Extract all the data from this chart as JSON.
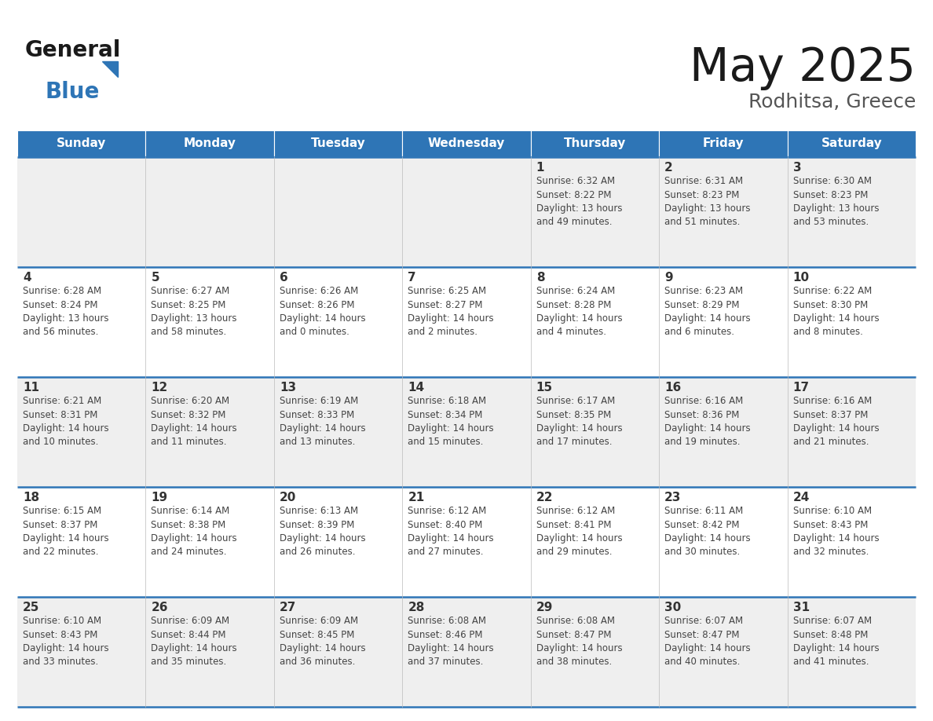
{
  "title": "May 2025",
  "subtitle": "Rodhitsa, Greece",
  "header_bg_color": "#2E75B6",
  "header_text_color": "#FFFFFF",
  "day_number_color": "#333333",
  "cell_text_color": "#444444",
  "days_of_week": [
    "Sunday",
    "Monday",
    "Tuesday",
    "Wednesday",
    "Thursday",
    "Friday",
    "Saturday"
  ],
  "title_color": "#1a1a1a",
  "subtitle_color": "#555555",
  "logo_general_color": "#1a1a1a",
  "logo_blue_color": "#2E75B6",
  "row_colors": [
    "#EFEFEF",
    "#FFFFFF",
    "#EFEFEF",
    "#FFFFFF",
    "#EFEFEF"
  ],
  "fig_width": 11.88,
  "fig_height": 9.18,
  "dpi": 100,
  "calendar_data": [
    [
      {
        "day": 0,
        "info": ""
      },
      {
        "day": 0,
        "info": ""
      },
      {
        "day": 0,
        "info": ""
      },
      {
        "day": 0,
        "info": ""
      },
      {
        "day": 1,
        "info": "Sunrise: 6:32 AM\nSunset: 8:22 PM\nDaylight: 13 hours\nand 49 minutes."
      },
      {
        "day": 2,
        "info": "Sunrise: 6:31 AM\nSunset: 8:23 PM\nDaylight: 13 hours\nand 51 minutes."
      },
      {
        "day": 3,
        "info": "Sunrise: 6:30 AM\nSunset: 8:23 PM\nDaylight: 13 hours\nand 53 minutes."
      }
    ],
    [
      {
        "day": 4,
        "info": "Sunrise: 6:28 AM\nSunset: 8:24 PM\nDaylight: 13 hours\nand 56 minutes."
      },
      {
        "day": 5,
        "info": "Sunrise: 6:27 AM\nSunset: 8:25 PM\nDaylight: 13 hours\nand 58 minutes."
      },
      {
        "day": 6,
        "info": "Sunrise: 6:26 AM\nSunset: 8:26 PM\nDaylight: 14 hours\nand 0 minutes."
      },
      {
        "day": 7,
        "info": "Sunrise: 6:25 AM\nSunset: 8:27 PM\nDaylight: 14 hours\nand 2 minutes."
      },
      {
        "day": 8,
        "info": "Sunrise: 6:24 AM\nSunset: 8:28 PM\nDaylight: 14 hours\nand 4 minutes."
      },
      {
        "day": 9,
        "info": "Sunrise: 6:23 AM\nSunset: 8:29 PM\nDaylight: 14 hours\nand 6 minutes."
      },
      {
        "day": 10,
        "info": "Sunrise: 6:22 AM\nSunset: 8:30 PM\nDaylight: 14 hours\nand 8 minutes."
      }
    ],
    [
      {
        "day": 11,
        "info": "Sunrise: 6:21 AM\nSunset: 8:31 PM\nDaylight: 14 hours\nand 10 minutes."
      },
      {
        "day": 12,
        "info": "Sunrise: 6:20 AM\nSunset: 8:32 PM\nDaylight: 14 hours\nand 11 minutes."
      },
      {
        "day": 13,
        "info": "Sunrise: 6:19 AM\nSunset: 8:33 PM\nDaylight: 14 hours\nand 13 minutes."
      },
      {
        "day": 14,
        "info": "Sunrise: 6:18 AM\nSunset: 8:34 PM\nDaylight: 14 hours\nand 15 minutes."
      },
      {
        "day": 15,
        "info": "Sunrise: 6:17 AM\nSunset: 8:35 PM\nDaylight: 14 hours\nand 17 minutes."
      },
      {
        "day": 16,
        "info": "Sunrise: 6:16 AM\nSunset: 8:36 PM\nDaylight: 14 hours\nand 19 minutes."
      },
      {
        "day": 17,
        "info": "Sunrise: 6:16 AM\nSunset: 8:37 PM\nDaylight: 14 hours\nand 21 minutes."
      }
    ],
    [
      {
        "day": 18,
        "info": "Sunrise: 6:15 AM\nSunset: 8:37 PM\nDaylight: 14 hours\nand 22 minutes."
      },
      {
        "day": 19,
        "info": "Sunrise: 6:14 AM\nSunset: 8:38 PM\nDaylight: 14 hours\nand 24 minutes."
      },
      {
        "day": 20,
        "info": "Sunrise: 6:13 AM\nSunset: 8:39 PM\nDaylight: 14 hours\nand 26 minutes."
      },
      {
        "day": 21,
        "info": "Sunrise: 6:12 AM\nSunset: 8:40 PM\nDaylight: 14 hours\nand 27 minutes."
      },
      {
        "day": 22,
        "info": "Sunrise: 6:12 AM\nSunset: 8:41 PM\nDaylight: 14 hours\nand 29 minutes."
      },
      {
        "day": 23,
        "info": "Sunrise: 6:11 AM\nSunset: 8:42 PM\nDaylight: 14 hours\nand 30 minutes."
      },
      {
        "day": 24,
        "info": "Sunrise: 6:10 AM\nSunset: 8:43 PM\nDaylight: 14 hours\nand 32 minutes."
      }
    ],
    [
      {
        "day": 25,
        "info": "Sunrise: 6:10 AM\nSunset: 8:43 PM\nDaylight: 14 hours\nand 33 minutes."
      },
      {
        "day": 26,
        "info": "Sunrise: 6:09 AM\nSunset: 8:44 PM\nDaylight: 14 hours\nand 35 minutes."
      },
      {
        "day": 27,
        "info": "Sunrise: 6:09 AM\nSunset: 8:45 PM\nDaylight: 14 hours\nand 36 minutes."
      },
      {
        "day": 28,
        "info": "Sunrise: 6:08 AM\nSunset: 8:46 PM\nDaylight: 14 hours\nand 37 minutes."
      },
      {
        "day": 29,
        "info": "Sunrise: 6:08 AM\nSunset: 8:47 PM\nDaylight: 14 hours\nand 38 minutes."
      },
      {
        "day": 30,
        "info": "Sunrise: 6:07 AM\nSunset: 8:47 PM\nDaylight: 14 hours\nand 40 minutes."
      },
      {
        "day": 31,
        "info": "Sunrise: 6:07 AM\nSunset: 8:48 PM\nDaylight: 14 hours\nand 41 minutes."
      }
    ]
  ]
}
